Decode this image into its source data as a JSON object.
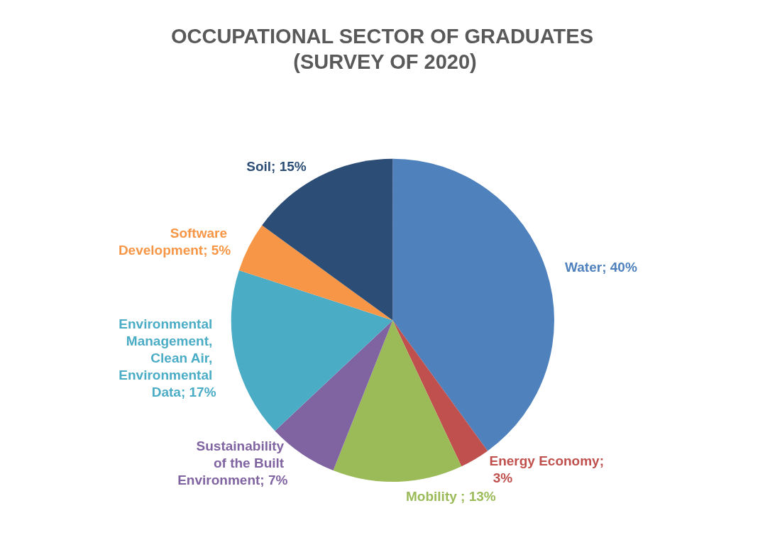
{
  "chart_data": {
    "type": "pie",
    "title": "OCCUPATIONAL SECTOR OF GRADUATES (SURVEY OF 2020)",
    "categories": [
      "Water; 40%",
      "Energy Economy; 3%",
      "Mobility ; 13%",
      "Sustainability of the Built Environment; 7%",
      "Environmental Management, Clean Air, Environmental Data; 17%",
      "Software Development; 5%",
      "Soil; 15%"
    ],
    "values": [
      40,
      3,
      13,
      7,
      17,
      5,
      15
    ],
    "colors": [
      "#4f81bd",
      "#c0504d",
      "#9bbb59",
      "#8064a2",
      "#4bacc6",
      "#f79646",
      "#2c4d75"
    ],
    "legend": false
  }
}
